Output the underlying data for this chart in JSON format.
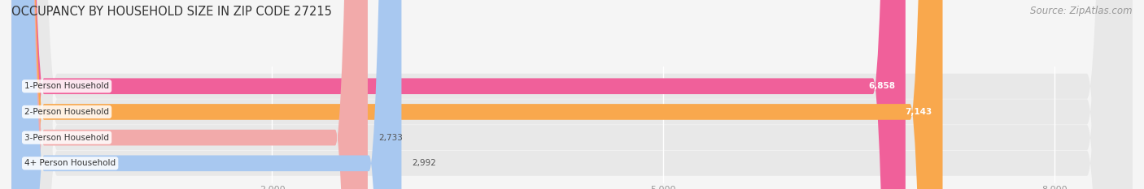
{
  "title": "OCCUPANCY BY HOUSEHOLD SIZE IN ZIP CODE 27215",
  "source": "Source: ZipAtlas.com",
  "categories": [
    "1-Person Household",
    "2-Person Household",
    "3-Person Household",
    "4+ Person Household"
  ],
  "values": [
    6858,
    7143,
    2733,
    2992
  ],
  "bar_colors": [
    "#f0609a",
    "#f9a84d",
    "#f2aaaa",
    "#a8c8f0"
  ],
  "xlim": [
    0,
    8600
  ],
  "xticks": [
    2000,
    5000,
    8000
  ],
  "background_color": "#f5f5f5",
  "row_bg_color": "#e8e8e8",
  "title_fontsize": 10.5,
  "source_fontsize": 8.5,
  "label_fontsize": 7.5,
  "value_fontsize": 7.5,
  "tick_fontsize": 8,
  "figsize": [
    14.06,
    2.33
  ]
}
